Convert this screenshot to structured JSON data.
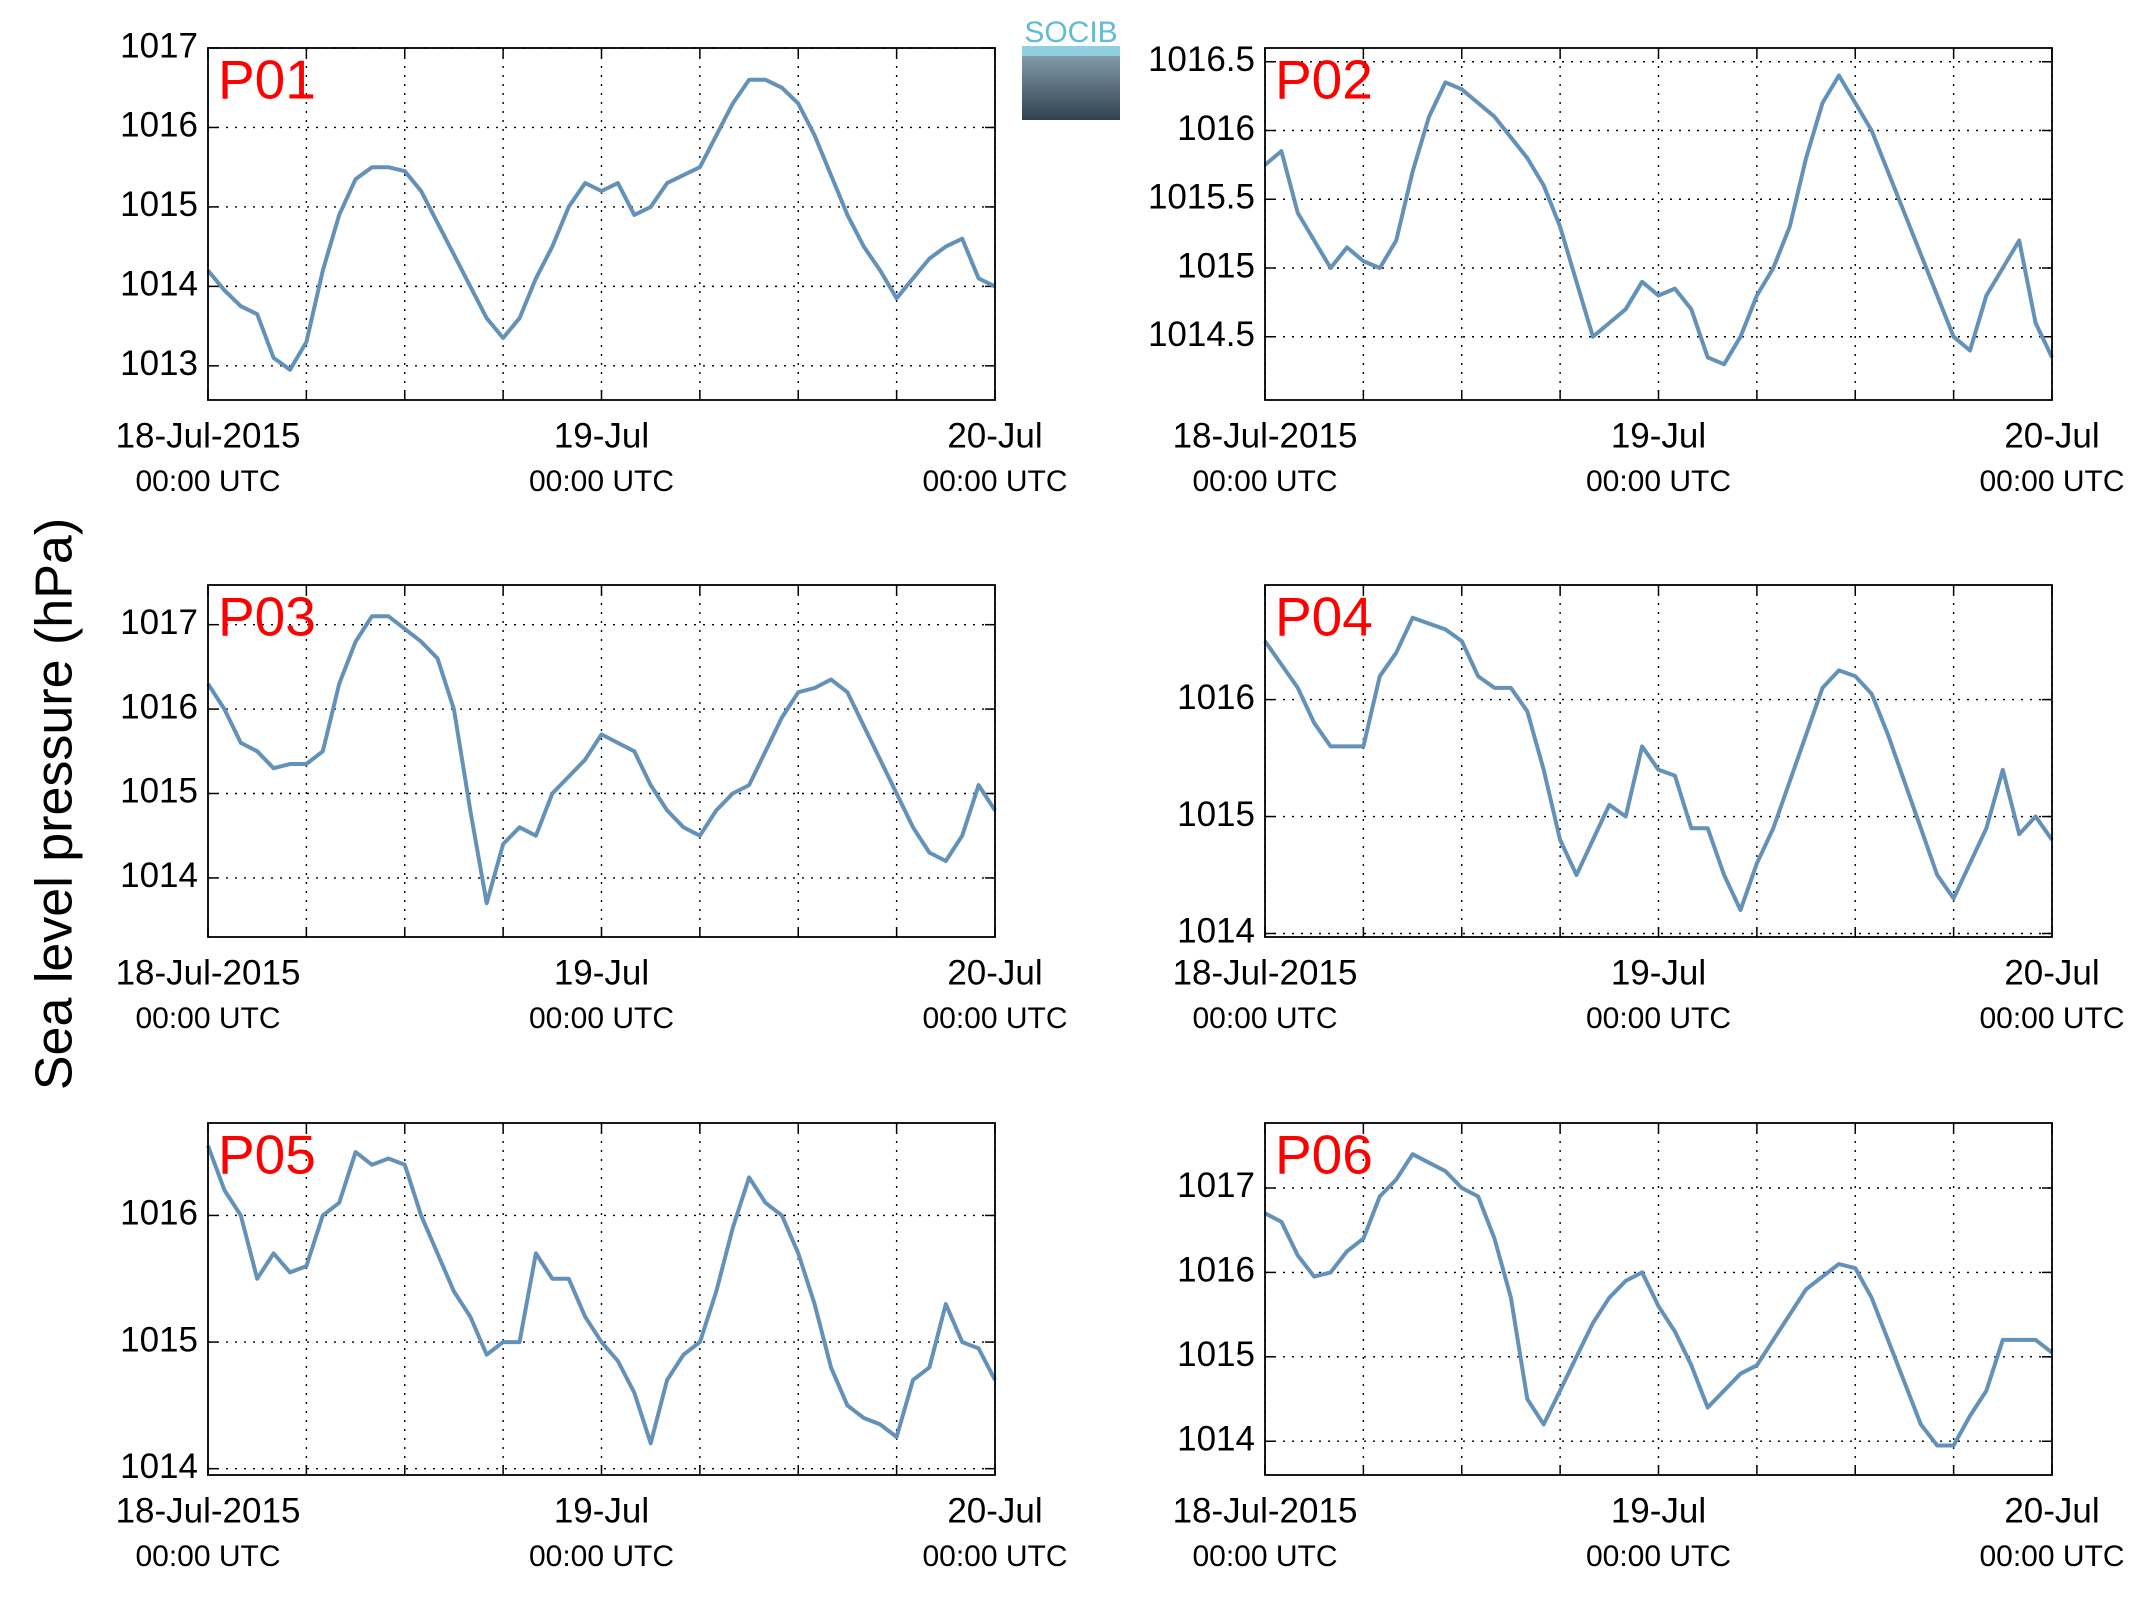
{
  "ylabel": "Sea level pressure (hPa)",
  "logo": "SOCIB",
  "chart_data": [
    {
      "type": "line",
      "title": "P01",
      "title_color": "#ff0000",
      "color": "#6491b8",
      "grid": true,
      "x": [
        0,
        1,
        2,
        3,
        4,
        5,
        6,
        7,
        8,
        9,
        10,
        11,
        12,
        13,
        14,
        15,
        16,
        17,
        18,
        19,
        20,
        21,
        22,
        23,
        24,
        25,
        26,
        27,
        28,
        29,
        30,
        31,
        32,
        33,
        34,
        35,
        36,
        37,
        38,
        39,
        40,
        41,
        42,
        43,
        44,
        45,
        46,
        47,
        48
      ],
      "values": [
        1014.2,
        1013.95,
        1013.75,
        1013.65,
        1013.1,
        1012.95,
        1013.3,
        1014.2,
        1014.9,
        1015.35,
        1015.5,
        1015.5,
        1015.45,
        1015.2,
        1014.8,
        1014.4,
        1014.0,
        1013.6,
        1013.35,
        1013.6,
        1014.1,
        1014.5,
        1015.0,
        1015.3,
        1015.2,
        1015.3,
        1014.9,
        1015.0,
        1015.3,
        1015.4,
        1015.5,
        1015.9,
        1016.3,
        1016.6,
        1016.6,
        1016.5,
        1016.3,
        1015.9,
        1015.4,
        1014.9,
        1014.5,
        1014.2,
        1013.85,
        1014.1,
        1014.35,
        1014.5,
        1014.6,
        1014.1,
        1014.0
      ],
      "xlim": [
        0,
        48
      ],
      "ylim": [
        1012.57,
        1017
      ],
      "yticks": [
        1013,
        1014,
        1015,
        1016,
        1017
      ],
      "xticks": [
        {
          "value": 0,
          "label": "18-Jul-2015",
          "sublabel": "00:00 UTC"
        },
        {
          "value": 24,
          "label": "19-Jul",
          "sublabel": "00:00 UTC"
        },
        {
          "value": 48,
          "label": "20-Jul",
          "sublabel": "00:00 UTC"
        }
      ],
      "xminorticks": [
        6,
        12,
        18,
        30,
        36,
        42
      ]
    },
    {
      "type": "line",
      "title": "P02",
      "title_color": "#ff0000",
      "color": "#6491b8",
      "grid": true,
      "x": [
        0,
        1,
        2,
        3,
        4,
        5,
        6,
        7,
        8,
        9,
        10,
        11,
        12,
        13,
        14,
        15,
        16,
        17,
        18,
        19,
        20,
        21,
        22,
        23,
        24,
        25,
        26,
        27,
        28,
        29,
        30,
        31,
        32,
        33,
        34,
        35,
        36,
        37,
        38,
        39,
        40,
        41,
        42,
        43,
        44,
        45,
        46,
        47,
        48
      ],
      "values": [
        1015.75,
        1015.85,
        1015.4,
        1015.2,
        1015.0,
        1015.15,
        1015.05,
        1015.0,
        1015.2,
        1015.7,
        1016.1,
        1016.35,
        1016.3,
        1016.2,
        1016.1,
        1015.95,
        1015.8,
        1015.6,
        1015.3,
        1014.9,
        1014.5,
        1014.6,
        1014.7,
        1014.9,
        1014.8,
        1014.85,
        1014.7,
        1014.35,
        1014.3,
        1014.5,
        1014.8,
        1015.0,
        1015.3,
        1015.8,
        1016.2,
        1016.4,
        1016.2,
        1016.0,
        1015.7,
        1015.4,
        1015.1,
        1014.8,
        1014.5,
        1014.4,
        1014.8,
        1015.0,
        1015.2,
        1014.6,
        1014.35
      ],
      "xlim": [
        0,
        48
      ],
      "ylim": [
        1014.04,
        1016.6
      ],
      "yticks": [
        1014.5,
        1015,
        1015.5,
        1016,
        1016.5
      ],
      "xticks": [
        {
          "value": 0,
          "label": "18-Jul-2015",
          "sublabel": "00:00 UTC"
        },
        {
          "value": 24,
          "label": "19-Jul",
          "sublabel": "00:00 UTC"
        },
        {
          "value": 48,
          "label": "20-Jul",
          "sublabel": "00:00 UTC"
        }
      ],
      "xminorticks": [
        6,
        12,
        18,
        30,
        36,
        42
      ]
    },
    {
      "type": "line",
      "title": "P03",
      "title_color": "#ff0000",
      "color": "#6491b8",
      "grid": true,
      "x": [
        0,
        1,
        2,
        3,
        4,
        5,
        6,
        7,
        8,
        9,
        10,
        11,
        12,
        13,
        14,
        15,
        16,
        17,
        18,
        19,
        20,
        21,
        22,
        23,
        24,
        25,
        26,
        27,
        28,
        29,
        30,
        31,
        32,
        33,
        34,
        35,
        36,
        37,
        38,
        39,
        40,
        41,
        42,
        43,
        44,
        45,
        46,
        47,
        48
      ],
      "values": [
        1016.3,
        1016.0,
        1015.6,
        1015.5,
        1015.3,
        1015.35,
        1015.35,
        1015.5,
        1016.3,
        1016.8,
        1017.1,
        1017.1,
        1016.95,
        1016.8,
        1016.6,
        1016.0,
        1014.8,
        1013.7,
        1014.4,
        1014.6,
        1014.5,
        1015.0,
        1015.2,
        1015.4,
        1015.7,
        1015.6,
        1015.5,
        1015.1,
        1014.8,
        1014.6,
        1014.5,
        1014.8,
        1015.0,
        1015.1,
        1015.5,
        1015.9,
        1016.2,
        1016.25,
        1016.35,
        1016.2,
        1015.8,
        1015.4,
        1015.0,
        1014.6,
        1014.3,
        1014.2,
        1014.5,
        1015.1,
        1014.8
      ],
      "xlim": [
        0,
        48
      ],
      "ylim": [
        1013.3,
        1017.47
      ],
      "yticks": [
        1014,
        1015,
        1016,
        1017
      ],
      "xticks": [
        {
          "value": 0,
          "label": "18-Jul-2015",
          "sublabel": "00:00 UTC"
        },
        {
          "value": 24,
          "label": "19-Jul",
          "sublabel": "00:00 UTC"
        },
        {
          "value": 48,
          "label": "20-Jul",
          "sublabel": "00:00 UTC"
        }
      ],
      "xminorticks": [
        6,
        12,
        18,
        30,
        36,
        42
      ]
    },
    {
      "type": "line",
      "title": "P04",
      "title_color": "#ff0000",
      "color": "#6491b8",
      "grid": true,
      "x": [
        0,
        1,
        2,
        3,
        4,
        5,
        6,
        7,
        8,
        9,
        10,
        11,
        12,
        13,
        14,
        15,
        16,
        17,
        18,
        19,
        20,
        21,
        22,
        23,
        24,
        25,
        26,
        27,
        28,
        29,
        30,
        31,
        32,
        33,
        34,
        35,
        36,
        37,
        38,
        39,
        40,
        41,
        42,
        43,
        44,
        45,
        46,
        47,
        48
      ],
      "values": [
        1016.5,
        1016.3,
        1016.1,
        1015.8,
        1015.6,
        1015.6,
        1015.6,
        1016.2,
        1016.4,
        1016.7,
        1016.65,
        1016.6,
        1016.5,
        1016.2,
        1016.1,
        1016.1,
        1015.9,
        1015.4,
        1014.8,
        1014.5,
        1014.8,
        1015.1,
        1015.0,
        1015.6,
        1015.4,
        1015.35,
        1014.9,
        1014.9,
        1014.5,
        1014.2,
        1014.6,
        1014.9,
        1015.3,
        1015.7,
        1016.1,
        1016.25,
        1016.2,
        1016.05,
        1015.7,
        1015.3,
        1014.9,
        1014.5,
        1014.3,
        1014.6,
        1014.9,
        1015.4,
        1014.85,
        1015.0,
        1014.8
      ],
      "xlim": [
        0,
        48
      ],
      "ylim": [
        1013.97,
        1016.98
      ],
      "yticks": [
        1014,
        1015,
        1016
      ],
      "xticks": [
        {
          "value": 0,
          "label": "18-Jul-2015",
          "sublabel": "00:00 UTC"
        },
        {
          "value": 24,
          "label": "19-Jul",
          "sublabel": "00:00 UTC"
        },
        {
          "value": 48,
          "label": "20-Jul",
          "sublabel": "00:00 UTC"
        }
      ],
      "xminorticks": [
        6,
        12,
        18,
        30,
        36,
        42
      ]
    },
    {
      "type": "line",
      "title": "P05",
      "title_color": "#ff0000",
      "color": "#6491b8",
      "grid": true,
      "x": [
        0,
        1,
        2,
        3,
        4,
        5,
        6,
        7,
        8,
        9,
        10,
        11,
        12,
        13,
        14,
        15,
        16,
        17,
        18,
        19,
        20,
        21,
        22,
        23,
        24,
        25,
        26,
        27,
        28,
        29,
        30,
        31,
        32,
        33,
        34,
        35,
        36,
        37,
        38,
        39,
        40,
        41,
        42,
        43,
        44,
        45,
        46,
        47,
        48
      ],
      "values": [
        1016.55,
        1016.2,
        1016.0,
        1015.5,
        1015.7,
        1015.55,
        1015.6,
        1016.0,
        1016.1,
        1016.5,
        1016.4,
        1016.45,
        1016.4,
        1016.0,
        1015.7,
        1015.4,
        1015.2,
        1014.9,
        1015.0,
        1015.0,
        1015.7,
        1015.5,
        1015.5,
        1015.2,
        1015.0,
        1014.85,
        1014.6,
        1014.2,
        1014.7,
        1014.9,
        1015.0,
        1015.4,
        1015.9,
        1016.3,
        1016.1,
        1016.0,
        1015.7,
        1015.3,
        1014.8,
        1014.5,
        1014.4,
        1014.35,
        1014.25,
        1014.7,
        1014.8,
        1015.3,
        1015.0,
        1014.95,
        1014.7
      ],
      "xlim": [
        0,
        48
      ],
      "ylim": [
        1013.95,
        1016.73
      ],
      "yticks": [
        1014,
        1015,
        1016
      ],
      "xticks": [
        {
          "value": 0,
          "label": "18-Jul-2015",
          "sublabel": "00:00 UTC"
        },
        {
          "value": 24,
          "label": "19-Jul",
          "sublabel": "00:00 UTC"
        },
        {
          "value": 48,
          "label": "20-Jul",
          "sublabel": "00:00 UTC"
        }
      ],
      "xminorticks": [
        6,
        12,
        18,
        30,
        36,
        42
      ]
    },
    {
      "type": "line",
      "title": "P06",
      "title_color": "#ff0000",
      "color": "#6491b8",
      "grid": true,
      "x": [
        0,
        1,
        2,
        3,
        4,
        5,
        6,
        7,
        8,
        9,
        10,
        11,
        12,
        13,
        14,
        15,
        16,
        17,
        18,
        19,
        20,
        21,
        22,
        23,
        24,
        25,
        26,
        27,
        28,
        29,
        30,
        31,
        32,
        33,
        34,
        35,
        36,
        37,
        38,
        39,
        40,
        41,
        42,
        43,
        44,
        45,
        46,
        47,
        48
      ],
      "values": [
        1016.7,
        1016.6,
        1016.2,
        1015.95,
        1016.0,
        1016.25,
        1016.4,
        1016.9,
        1017.1,
        1017.4,
        1017.3,
        1017.2,
        1017.0,
        1016.9,
        1016.4,
        1015.7,
        1014.5,
        1014.2,
        1014.6,
        1015.0,
        1015.4,
        1015.7,
        1015.9,
        1016.0,
        1015.6,
        1015.3,
        1014.9,
        1014.4,
        1014.6,
        1014.8,
        1014.9,
        1015.2,
        1015.5,
        1015.8,
        1015.95,
        1016.1,
        1016.05,
        1015.7,
        1015.2,
        1014.7,
        1014.2,
        1013.95,
        1013.95,
        1014.3,
        1014.6,
        1015.2,
        1015.2,
        1015.2,
        1015.05
      ],
      "xlim": [
        0,
        48
      ],
      "ylim": [
        1013.6,
        1017.77
      ],
      "yticks": [
        1014,
        1015,
        1016,
        1017
      ],
      "xticks": [
        {
          "value": 0,
          "label": "18-Jul-2015",
          "sublabel": "00:00 UTC"
        },
        {
          "value": 24,
          "label": "19-Jul",
          "sublabel": "00:00 UTC"
        },
        {
          "value": 48,
          "label": "20-Jul",
          "sublabel": "00:00 UTC"
        }
      ],
      "xminorticks": [
        6,
        12,
        18,
        30,
        36,
        42
      ]
    }
  ]
}
